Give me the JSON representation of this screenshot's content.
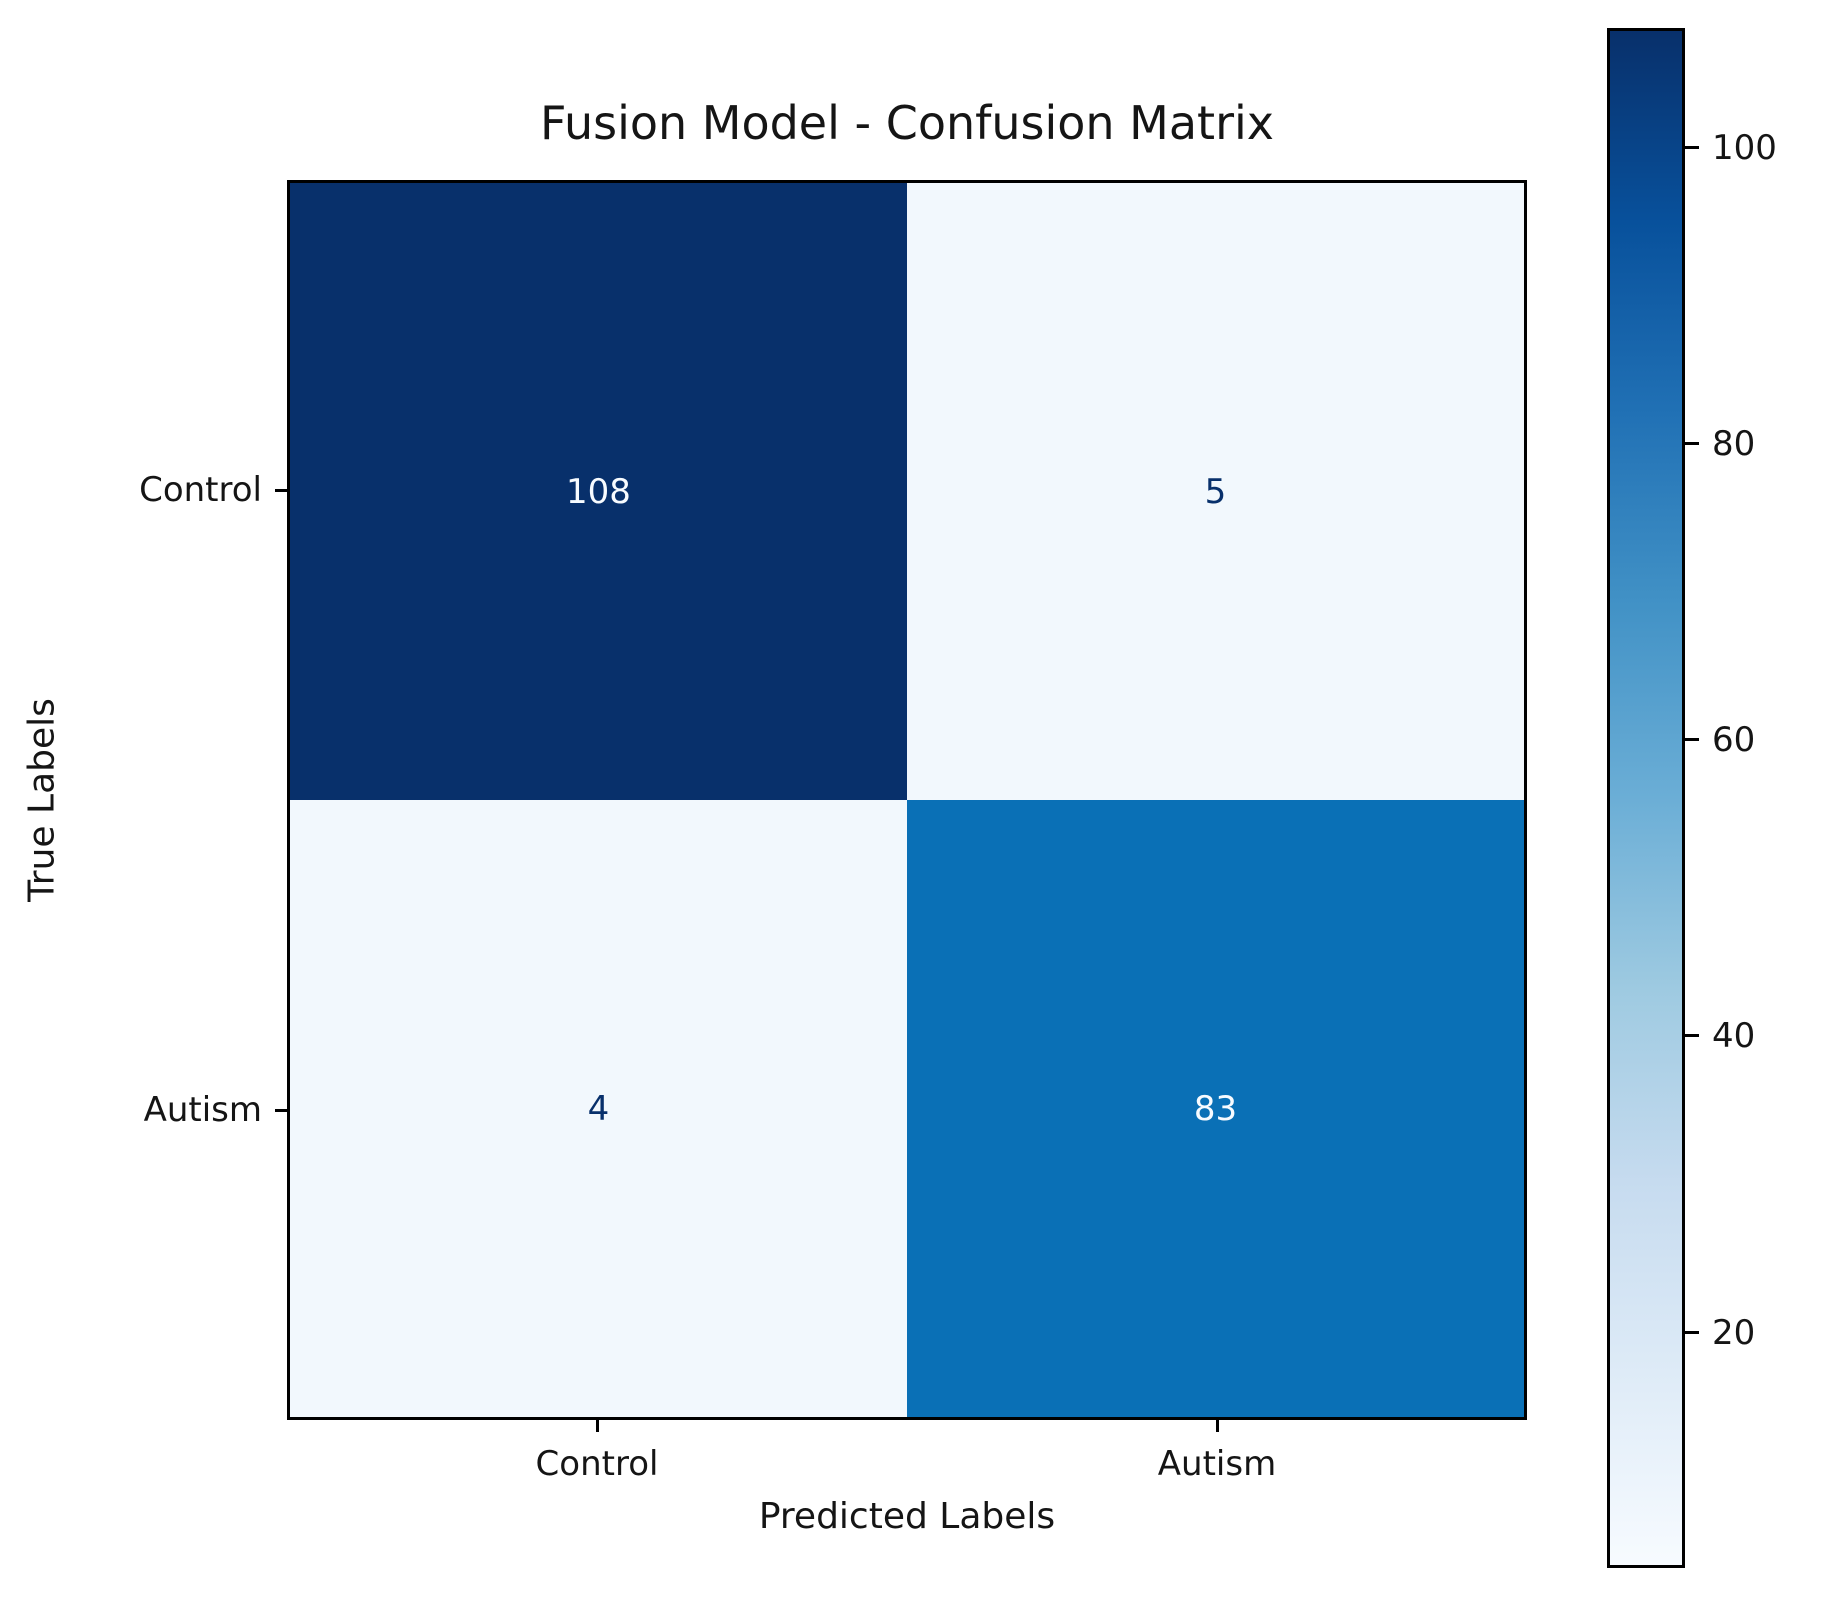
{
  "chart_data": {
    "type": "heatmap",
    "title": "Fusion Model - Confusion Matrix",
    "xlabel": "Predicted Labels",
    "ylabel": "True Labels",
    "x_categories": [
      "Control",
      "Autism"
    ],
    "y_categories": [
      "Control",
      "Autism"
    ],
    "matrix": [
      [
        108,
        5
      ],
      [
        4,
        83
      ]
    ],
    "vmin": 4,
    "vmax": 108,
    "colormap": "Blues",
    "grid": false,
    "colors": {
      "cell_high": "#08306b",
      "cell_low": "#f2f8fd",
      "cell_mid": "#0a70b6",
      "value_text_on_dark": "#f7fbff",
      "value_text_on_light": "#08306b",
      "frame": "#000000"
    },
    "colorbar": {
      "position": "right",
      "ticks": [
        100,
        80,
        60,
        40,
        20
      ]
    }
  }
}
